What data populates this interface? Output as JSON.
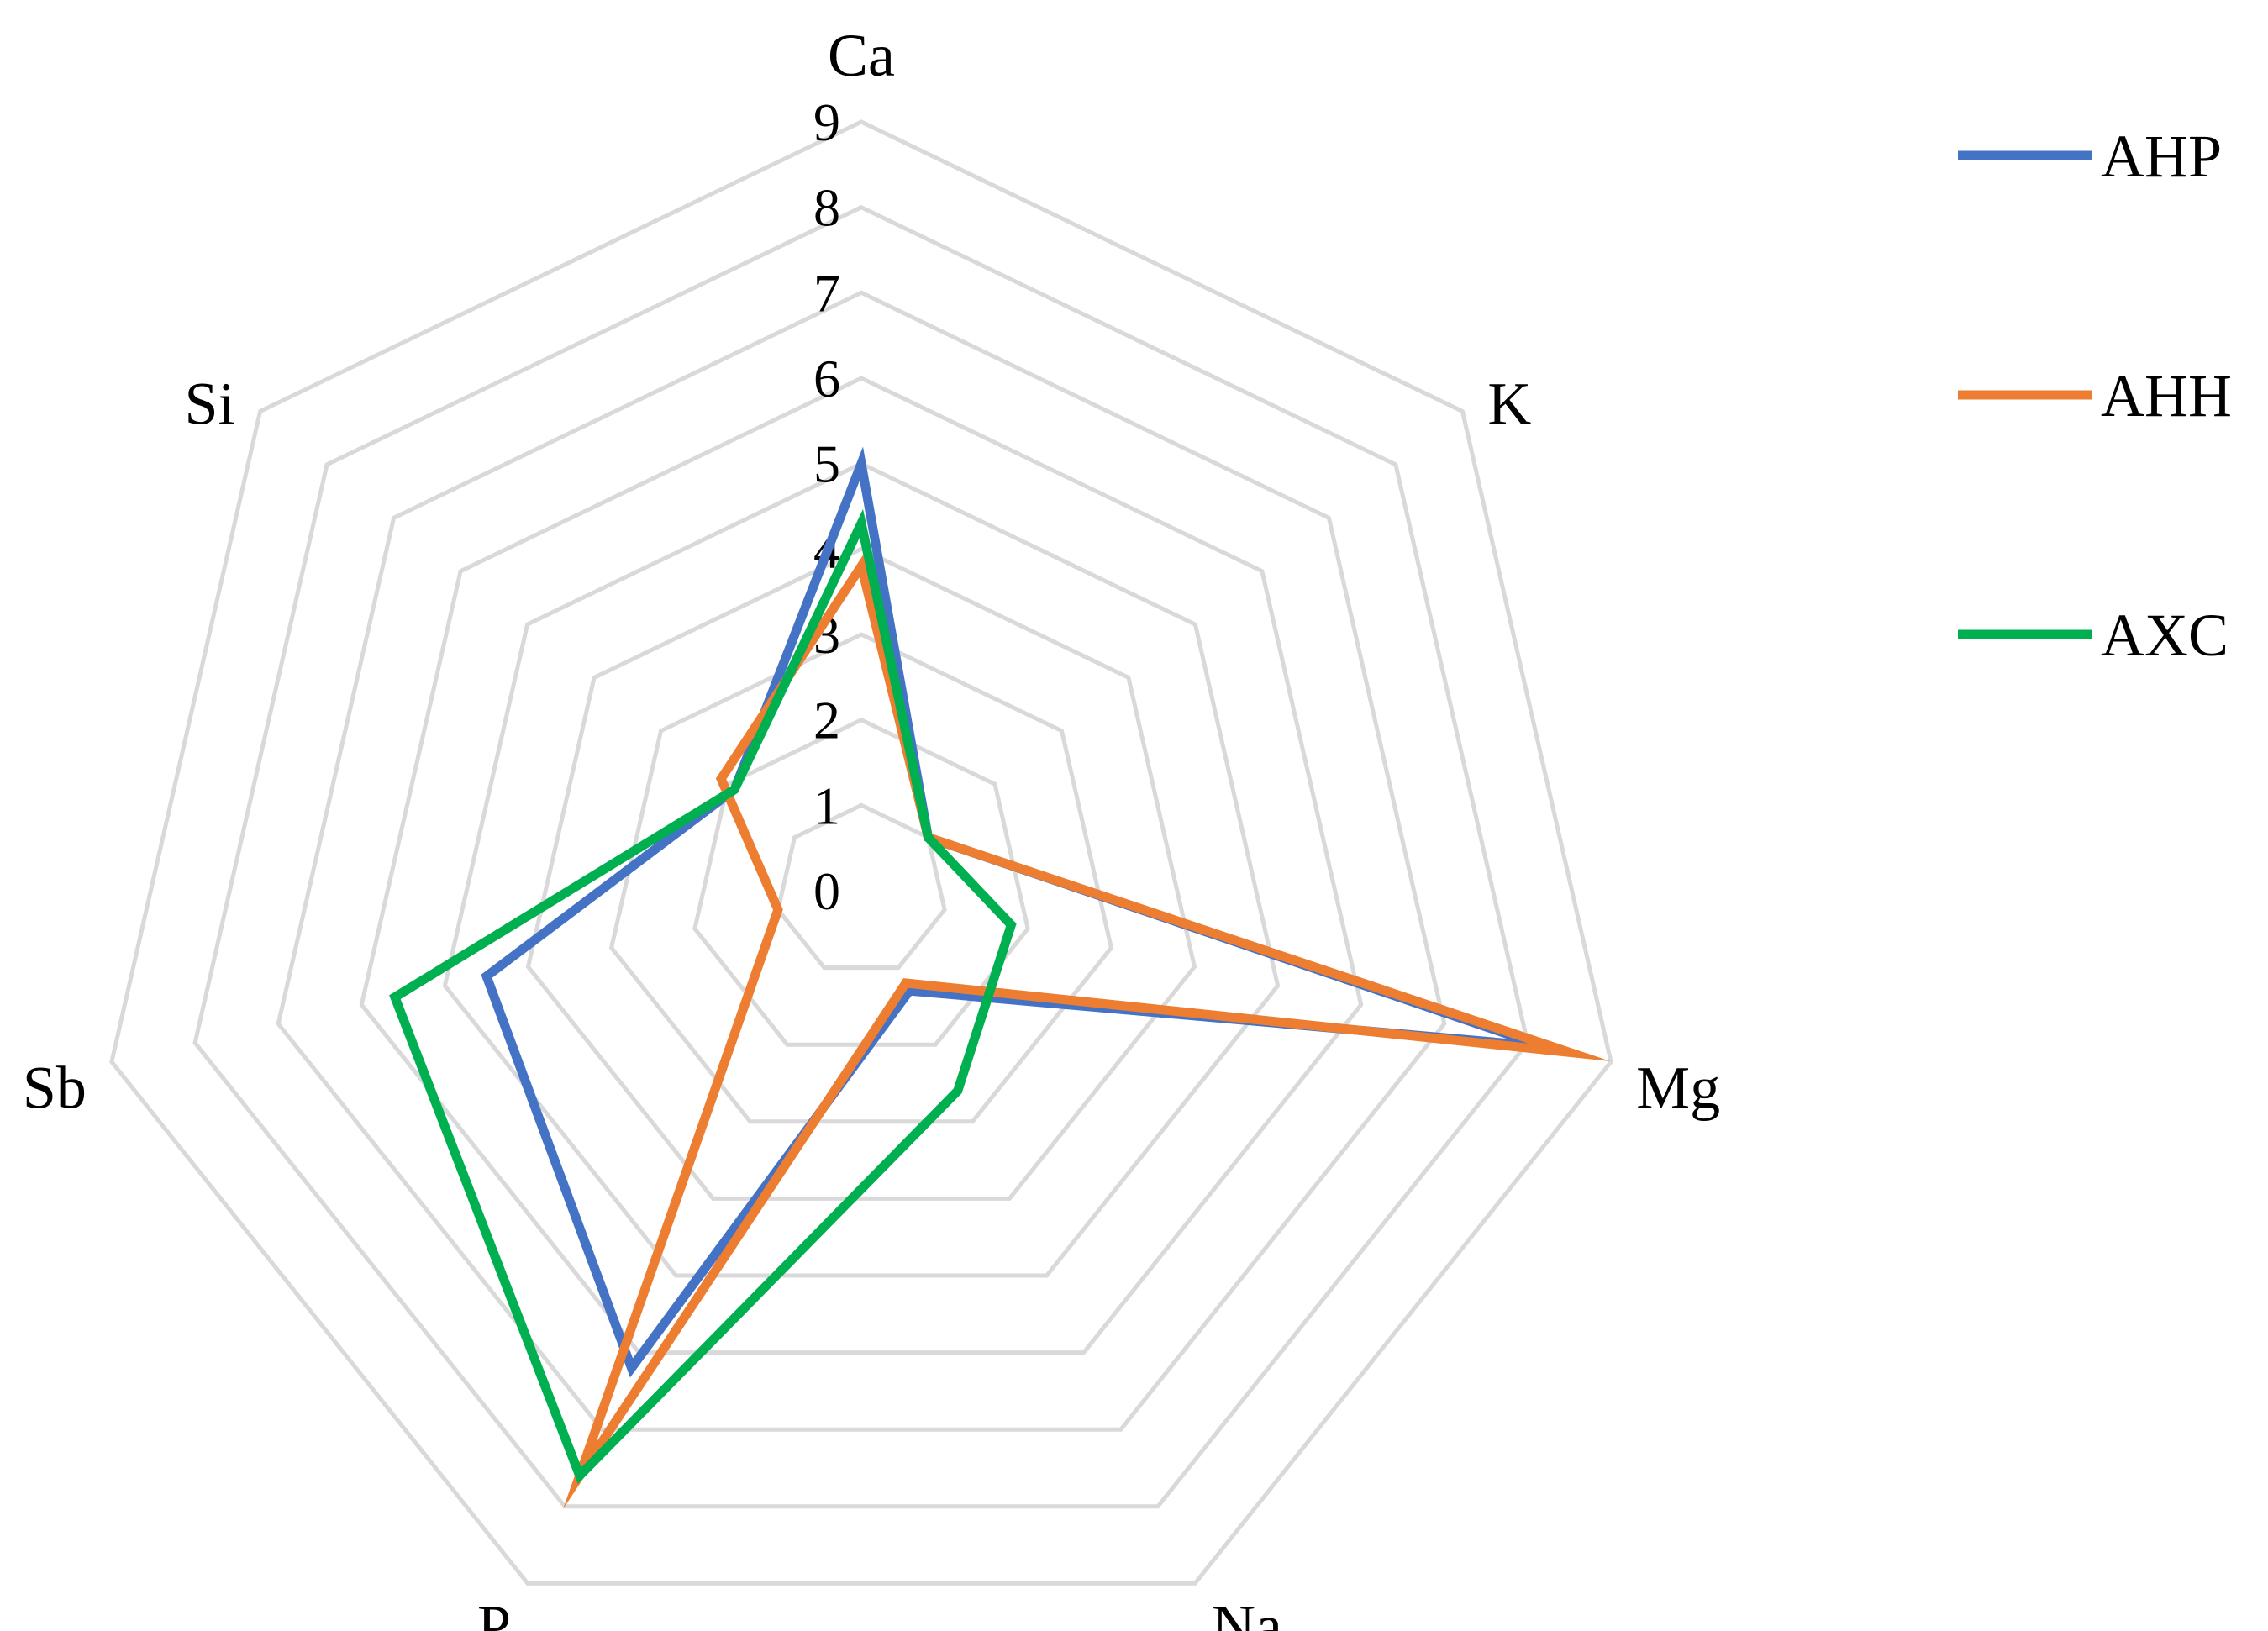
{
  "chart_data": {
    "type": "radar",
    "axes": [
      "Ca",
      "K",
      "Mg",
      "Na",
      "P",
      "Sb",
      "Si"
    ],
    "ticks": [
      "0",
      "1",
      "2",
      "3",
      "4",
      "5",
      "6",
      "7",
      "8",
      "9"
    ],
    "range": [
      0,
      9
    ],
    "grid": true,
    "legend_position": "right",
    "series": [
      {
        "name": "AHP",
        "color": "#4472c4",
        "values": [
          5.0,
          1.0,
          8.2,
          1.3,
          6.2,
          4.5,
          1.9
        ]
      },
      {
        "name": "AHH",
        "color": "#ed7d31",
        "values": [
          3.8,
          1.0,
          8.5,
          1.2,
          7.6,
          1.0,
          2.1
        ]
      },
      {
        "name": "AXC",
        "color": "#00b050",
        "values": [
          4.3,
          1.0,
          1.8,
          2.6,
          7.6,
          5.6,
          1.9
        ]
      }
    ]
  }
}
